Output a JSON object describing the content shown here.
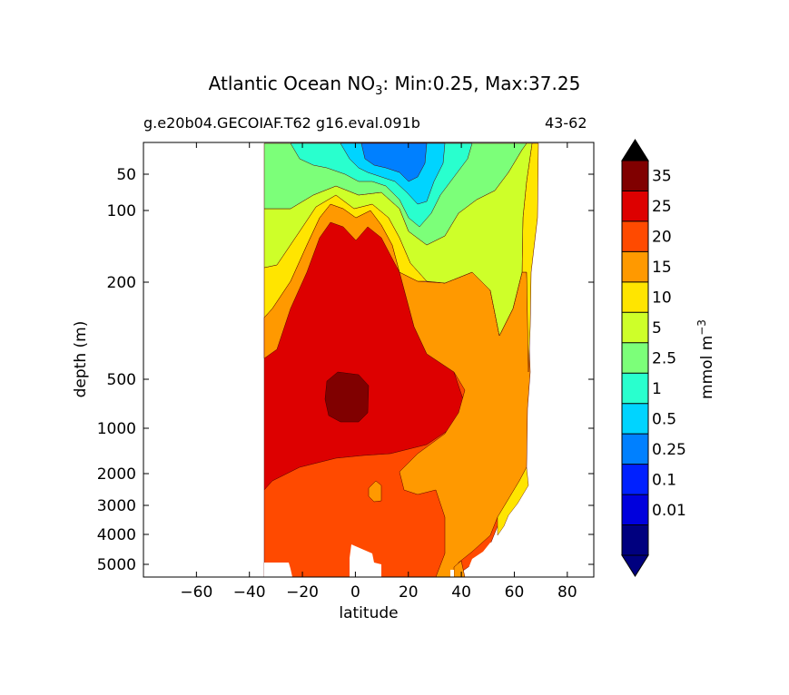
{
  "chart_data": {
    "type": "contourf",
    "title_prefix": "Atlantic Ocean NO",
    "title_sub": "3",
    "title_suffix": ": Min:0.25, Max:37.25",
    "subtitle_left": "g.e20b04.GECOIAF.T62 g16.eval.091b",
    "subtitle_right": "43-62",
    "xlabel": "latitude",
    "ylabel": "depth (m)",
    "xlim": [
      -80,
      90
    ],
    "xticks": [
      -60,
      -40,
      -20,
      0,
      20,
      40,
      60,
      80
    ],
    "xtick_labels": [
      "−60",
      "−40",
      "−20",
      "0",
      "20",
      "40",
      "60",
      "80"
    ],
    "yscale": "log-like",
    "ylim": [
      5500,
      25
    ],
    "yticks": [
      50,
      100,
      200,
      500,
      1000,
      2000,
      3000,
      4000,
      5000
    ],
    "ytick_labels": [
      "50",
      "100",
      "200",
      "500",
      "1000",
      "2000",
      "3000",
      "4000",
      "5000"
    ],
    "data_lat_range": [
      -34,
      68
    ],
    "colorbar": {
      "label_main": "mmol m",
      "label_exp": "−3",
      "levels": [
        "0.01",
        "0.1",
        "0.25",
        "0.5",
        "1",
        "2.5",
        "5",
        "10",
        "15",
        "20",
        "25",
        "35"
      ],
      "colors": [
        "#00007f",
        "#0000dd",
        "#0020ff",
        "#0080ff",
        "#00d4ff",
        "#29ffce",
        "#7cff79",
        "#ceff29",
        "#ffe500",
        "#ff9900",
        "#ff4a00",
        "#dd0000",
        "#800000"
      ],
      "extend": "both"
    },
    "contour_bands": [
      {
        "level": "2.5-5",
        "color": "#7cff79"
      },
      {
        "level": "5-10",
        "color": "#ceff29"
      },
      {
        "level": "10-15",
        "color": "#ffe500"
      },
      {
        "level": "15-20",
        "color": "#ff9900"
      },
      {
        "level": "20-25",
        "color": "#ff4a00"
      },
      {
        "level": "25-35",
        "color": "#dd0000"
      },
      {
        "level": ">35",
        "color": "#800000"
      },
      {
        "level": "1-2.5",
        "color": "#29ffce"
      },
      {
        "level": "0.5-1",
        "color": "#00d4ff"
      },
      {
        "level": "0.25-0.5",
        "color": "#0080ff"
      }
    ]
  }
}
